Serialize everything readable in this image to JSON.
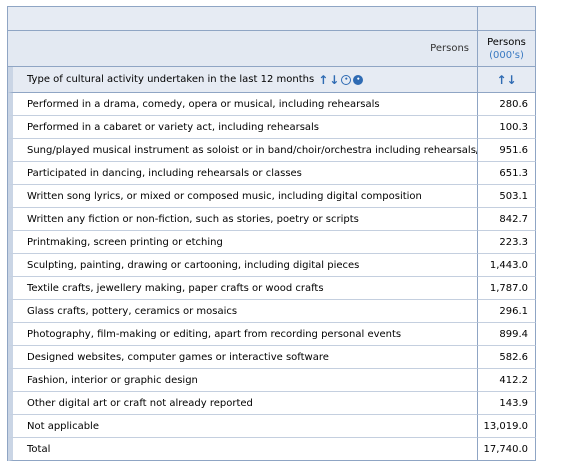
{
  "header": {
    "column_label": "Persons",
    "column_title": "Persons",
    "column_units": "(000's)"
  },
  "row_title": "Type of cultural activity undertaken in the last 12 months",
  "icons": {
    "sort_up": "up-arrow-icon",
    "sort_down": "down-arrow-icon",
    "circle_1": "expand-circle-icon",
    "circle_2": "collapse-circle-icon",
    "sort_pair": "sort-arrows-icon"
  },
  "rows": [
    {
      "label": "Performed in a drama, comedy, opera or musical, including rehearsals",
      "value": "280.6"
    },
    {
      "label": "Performed in a cabaret or variety act, including rehearsals",
      "value": "100.3"
    },
    {
      "label": "Sung/played musical instrument as soloist or in band/choir/orchestra including rehearsals/classes",
      "value": "951.6"
    },
    {
      "label": "Participated in dancing, including rehearsals or classes",
      "value": "651.3"
    },
    {
      "label": "Written song lyrics, or mixed or composed music, including digital composition",
      "value": "503.1"
    },
    {
      "label": "Written any fiction or non-fiction, such as stories, poetry or scripts",
      "value": "842.7"
    },
    {
      "label": "Printmaking, screen printing or etching",
      "value": "223.3"
    },
    {
      "label": "Sculpting, painting, drawing or cartooning, including digital pieces",
      "value": "1,443.0"
    },
    {
      "label": "Textile crafts, jewellery making, paper crafts or wood crafts",
      "value": "1,787.0"
    },
    {
      "label": "Glass crafts, pottery, ceramics or mosaics",
      "value": "296.1"
    },
    {
      "label": "Photography, film-making or editing, apart from recording personal events",
      "value": "899.4"
    },
    {
      "label": "Designed websites, computer games or interactive software",
      "value": "582.6"
    },
    {
      "label": "Fashion, interior or graphic design",
      "value": "412.2"
    },
    {
      "label": "Other digital art or craft not already reported",
      "value": "143.9"
    },
    {
      "label": "Not applicable",
      "value": "13,019.0"
    },
    {
      "label": "Total",
      "value": "17,740.0"
    }
  ]
}
